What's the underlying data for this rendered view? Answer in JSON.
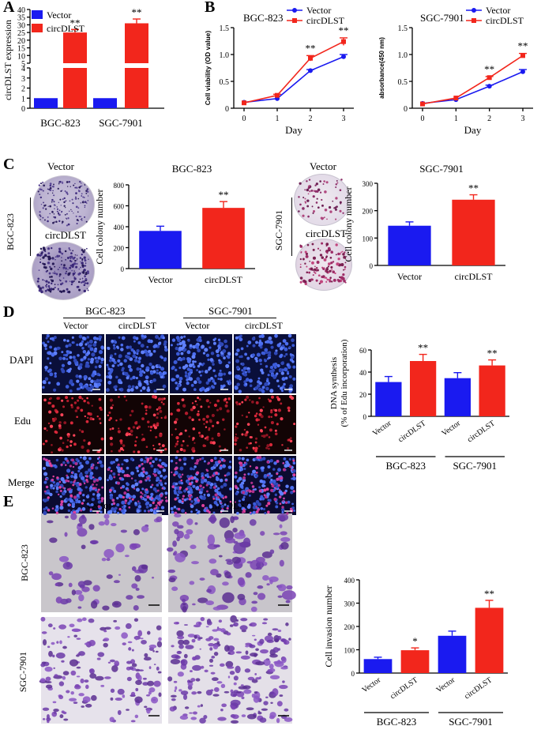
{
  "panels": {
    "A": "A",
    "B": "B",
    "C": "C",
    "D": "D",
    "E": "E"
  },
  "colors": {
    "vector": "#1a1af0",
    "circ": "#f2261c",
    "dapi_bg": "#0a0f3a",
    "edu_bg": "#120405",
    "merge_bg": "#0b0b30",
    "crystal": "#7a43b5"
  },
  "legend": {
    "vector": "Vector",
    "circ": "circDLST"
  },
  "figC": {
    "title_bgc": "BGC-823",
    "title_sgc": "SGC-7901",
    "vector": "Vector",
    "circ": "circDLST",
    "cell_bgc": "BGC-823",
    "cell_sgc": "SGC-7901"
  },
  "figD": {
    "group1": "BGC-823",
    "group2": "SGC-7901",
    "vector": "Vector",
    "circ": "circDLST",
    "rows": [
      "DAPI",
      "Edu",
      "Merge"
    ]
  },
  "figE": {
    "vector": "Vector",
    "circ": "circDLST",
    "row1": "BGC-823",
    "row2": "SGC-7901"
  },
  "chart_data": [
    {
      "id": "A",
      "type": "bar",
      "title": "",
      "ylabel": "circDLST expression",
      "ylim": [
        0,
        40
      ],
      "axis_break": [
        4,
        5
      ],
      "ylim_lower": [
        0,
        4
      ],
      "ylim_upper": [
        5,
        40
      ],
      "yticks_lower": [
        0,
        1,
        2,
        3,
        4
      ],
      "yticks_upper": [
        5,
        10,
        15,
        20,
        25,
        30,
        35,
        40
      ],
      "categories": [
        "BGC-823",
        "SGC-7901"
      ],
      "series": [
        {
          "name": "Vector",
          "values": [
            1,
            1
          ],
          "errors": [
            0,
            0
          ]
        },
        {
          "name": "circDLST",
          "values": [
            25,
            31
          ],
          "errors": [
            2,
            2.8
          ]
        }
      ],
      "annotations": [
        "",
        "**",
        "",
        "**"
      ]
    },
    {
      "id": "B1",
      "type": "line",
      "title": "BGC-823",
      "xlabel": "Day",
      "ylabel": "Cell viability (OD value)",
      "x": [
        0,
        1,
        2,
        3
      ],
      "xlim": [
        0,
        3
      ],
      "ylim": [
        0,
        1.5
      ],
      "yticks": [
        0,
        0.5,
        1.0,
        1.5
      ],
      "ytick_labels": [
        "0",
        "0.5",
        "1.0",
        "1.5"
      ],
      "series": [
        {
          "name": "Vector",
          "values": [
            0.11,
            0.18,
            0.7,
            0.96
          ],
          "errors": [
            0.01,
            0.01,
            0.02,
            0.04
          ]
        },
        {
          "name": "circDLST",
          "values": [
            0.1,
            0.24,
            0.93,
            1.24
          ],
          "errors": [
            0.01,
            0.02,
            0.05,
            0.07
          ]
        }
      ],
      "annotations": [
        "",
        "",
        "**",
        "**"
      ]
    },
    {
      "id": "B2",
      "type": "line",
      "title": "SGC-7901",
      "xlabel": "Day",
      "ylabel": "absorbance(450 nm)",
      "x": [
        0,
        1,
        2,
        3
      ],
      "xlim": [
        0,
        3
      ],
      "ylim": [
        0,
        1.5
      ],
      "yticks": [
        0,
        0.5,
        1.0,
        1.5
      ],
      "ytick_labels": [
        "0",
        "0.5",
        "1.0",
        "1.5"
      ],
      "series": [
        {
          "name": "Vector",
          "values": [
            0.09,
            0.16,
            0.41,
            0.68
          ],
          "errors": [
            0.01,
            0.01,
            0.02,
            0.04
          ]
        },
        {
          "name": "circDLST",
          "values": [
            0.08,
            0.19,
            0.57,
            0.98
          ],
          "errors": [
            0.01,
            0.01,
            0.02,
            0.04
          ]
        }
      ],
      "annotations": [
        "",
        "",
        "**",
        "**"
      ]
    },
    {
      "id": "C1",
      "type": "bar",
      "title": "BGC-823",
      "ylabel": "Cell colony number",
      "ylim": [
        0,
        800
      ],
      "yticks": [
        0,
        200,
        400,
        600,
        800
      ],
      "categories": [
        "Vector",
        "circDLST"
      ],
      "values": [
        360,
        580
      ],
      "errors": [
        45,
        60
      ],
      "annotations": [
        "",
        "**"
      ]
    },
    {
      "id": "C2",
      "type": "bar",
      "title": "SGC-7901",
      "ylabel": "Cell colony number",
      "ylim": [
        0,
        300
      ],
      "yticks": [
        0,
        100,
        200,
        300
      ],
      "categories": [
        "Vector",
        "circDLST"
      ],
      "values": [
        145,
        240
      ],
      "errors": [
        14,
        18
      ],
      "annotations": [
        "",
        "**"
      ]
    },
    {
      "id": "D",
      "type": "bar",
      "ylabel": "DNA synthesis",
      "ylabel2": "(% of Edu incorporation)",
      "ylim": [
        0,
        60
      ],
      "yticks": [
        0,
        20,
        40,
        60
      ],
      "categories": [
        "Vector",
        "circDLST",
        "Vector",
        "circDLST"
      ],
      "groups": [
        "BGC-823",
        "SGC-7901"
      ],
      "values": [
        31,
        50,
        34.5,
        46
      ],
      "errors": [
        5,
        6,
        5,
        5
      ],
      "annotations": [
        "",
        "**",
        "",
        "**"
      ]
    },
    {
      "id": "E",
      "type": "bar",
      "ylabel": "Cell invasion number",
      "ylim": [
        0,
        400
      ],
      "yticks": [
        0,
        100,
        200,
        300,
        400
      ],
      "categories": [
        "Vector",
        "circDLST",
        "Vector",
        "circDLST"
      ],
      "groups": [
        "BGC-823",
        "SGC-7901"
      ],
      "values": [
        60,
        98,
        160,
        280
      ],
      "errors": [
        8,
        10,
        20,
        32
      ],
      "annotations": [
        "",
        "*",
        "",
        "**"
      ]
    }
  ]
}
